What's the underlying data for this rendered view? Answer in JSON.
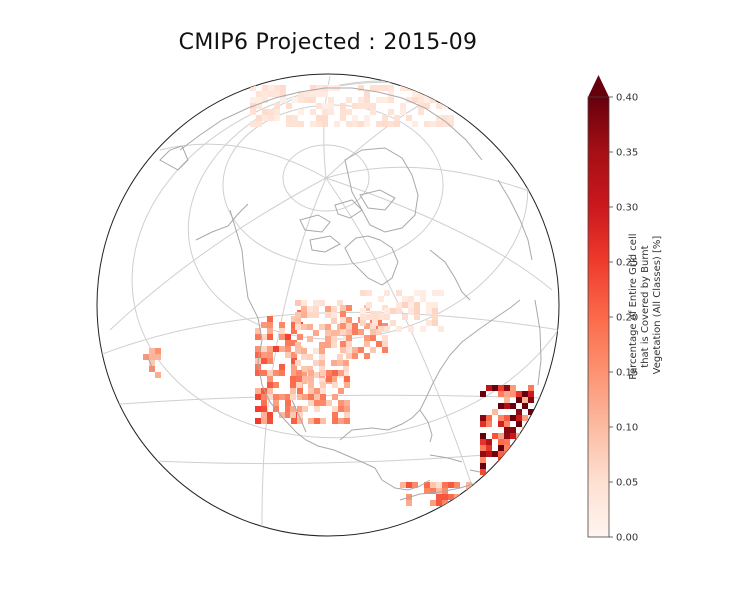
{
  "title": "CMIP6 Projected : 2015-09",
  "colorbar": {
    "label_lines": [
      "Percentage of Entire Grid cell",
      "that is Covered by Burnt",
      "Vegetation (All Classes) [%]"
    ],
    "ticks": [
      "0.00",
      "0.05",
      "0.10",
      "0.15",
      "0.20",
      "0.25",
      "0.30",
      "0.35",
      "0.40"
    ],
    "min": 0.0,
    "max": 0.4,
    "extend": "max",
    "colormap": "Reds",
    "colors": [
      "#fff5f0",
      "#fee0d2",
      "#fcbba1",
      "#fc9272",
      "#fb6a4a",
      "#ef3b2c",
      "#cb181d",
      "#a50f15",
      "#67000d"
    ]
  },
  "map": {
    "projection": "orthographic",
    "center": "North America",
    "gridlines": true,
    "coastline_color": "#a8a8a8",
    "fire_regions": [
      {
        "name": "Pacific Northwest / California",
        "intensity": 0.22
      },
      {
        "name": "Intermountain West",
        "intensity": 0.12
      },
      {
        "name": "Northern Great Plains",
        "intensity": 0.16
      },
      {
        "name": "Southern Rockies / Texas",
        "intensity": 0.18
      },
      {
        "name": "Central Canada",
        "intensity": 0.06
      },
      {
        "name": "Eastern Siberia",
        "intensity": 0.05
      },
      {
        "name": "Hawaii",
        "intensity": 0.15
      },
      {
        "name": "Venezuela / Caribbean coast",
        "intensity": 0.2
      },
      {
        "name": "West Africa edge",
        "intensity": 0.4
      }
    ]
  }
}
